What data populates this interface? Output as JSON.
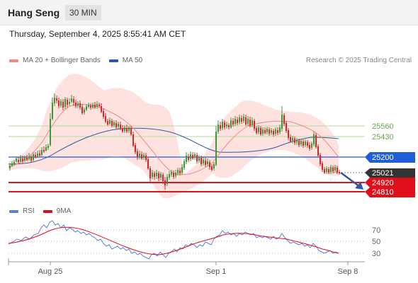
{
  "header": {
    "instrument": "Hang Seng",
    "timeframe": "30 MIN"
  },
  "datetime": "Thursday, September 4, 2025 8:55:41 AM CET",
  "legend": {
    "items": [
      {
        "label": "MA 20 + Bollinger Bands",
        "color": "#f08a84"
      },
      {
        "label": "MA 50",
        "color": "#2c5aa0"
      }
    ],
    "copyright": "Research © 2025 Trading Central"
  },
  "indicator_legend": {
    "items": [
      {
        "label": "RSI",
        "color": "#5b7fd6"
      },
      {
        "label": "9MA",
        "color": "#e0101a"
      }
    ]
  },
  "price_levels": [
    {
      "value": "25560",
      "kind": "resistance-soft",
      "color": "#8cc063"
    },
    {
      "value": "25430",
      "kind": "resistance-soft",
      "color": "#8cc063"
    },
    {
      "value": "25200",
      "kind": "pivot",
      "color": "#1f5ed6"
    },
    {
      "value": "25021",
      "kind": "last-price",
      "color": "#333333"
    },
    {
      "value": "24920",
      "kind": "support",
      "color": "#e0101a"
    },
    {
      "value": "24810",
      "kind": "support",
      "color": "#e0101a"
    }
  ],
  "rsi_levels": [
    "70",
    "50",
    "30"
  ],
  "x_axis_labels": [
    "Aug 25",
    "Sep 1",
    "Sep 8"
  ],
  "colors": {
    "up_candle": "#3a9a3a",
    "down_candle": "#d9252a",
    "band_fill": "#fde2e0",
    "arrow": "#2c5aa0"
  }
}
